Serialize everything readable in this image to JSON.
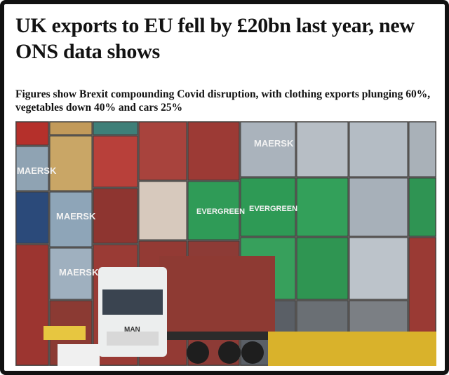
{
  "headline": "UK exports to EU fell by £20bn last year, new ONS data shows",
  "standfirst": "Figures show Brexit compounding Covid disruption, with clothing exports plunging 60%, vegetables down 40% and cars 25%",
  "photo": {
    "labels": [
      "MAERSK",
      "MAERSK",
      "MAERSK",
      "EVERGREEN",
      "EVERGREEN",
      "MAERSK",
      "MAN"
    ]
  }
}
